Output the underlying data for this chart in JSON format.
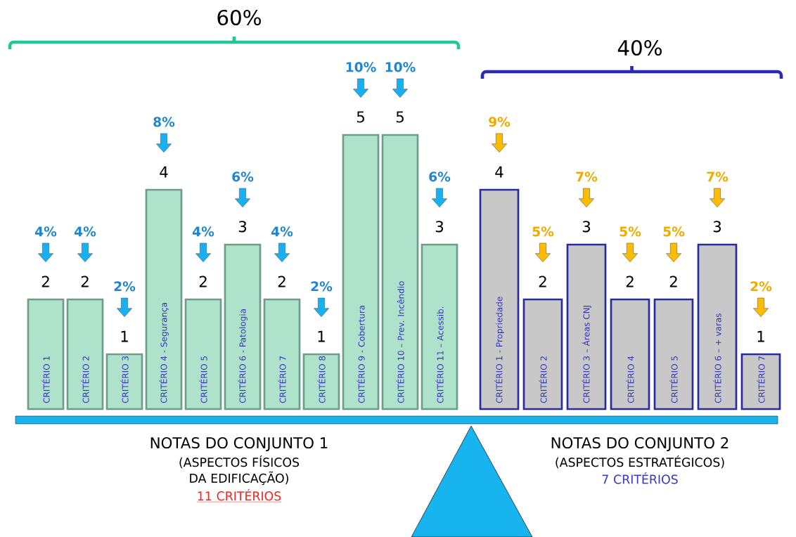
{
  "chart_data": [
    {
      "type": "bar",
      "title": "60%",
      "xlabel": "NOTAS DO CONJUNTO 1",
      "color": "#aee2ca",
      "data_labels": true,
      "categories": [
        "CRITÉRIO 1",
        "CRITÉRIO 2",
        "CRITÉRIO 3",
        "CRITÉRIO 4 - Segurança",
        "CRITÉRIO 5",
        "CRITÉRIO 6 - Patologia",
        "CRITÉRIO 7",
        "CRITÉRIO 8",
        "CRITÉRIO 9 - Cobertura",
        "CRITÉRIO 10 – Prev. Incêndio",
        "CRITÉRIO 11 – Acessib."
      ],
      "values": [
        2,
        2,
        1,
        4,
        2,
        3,
        2,
        1,
        5,
        5,
        3
      ],
      "annotations": [
        "(ASPECTOS FÍSICOS DA EDIFICAÇÃO)",
        "11 CRITÉRIOS",
        "4%",
        "4%",
        "2%",
        "8%",
        "4%",
        "6%",
        "4%",
        "2%",
        "10%",
        "10%",
        "6%"
      ]
    },
    {
      "type": "bar",
      "title": "40%",
      "xlabel": "NOTAS DO CONJUNTO 2",
      "color": "#c8c8c8",
      "data_labels": true,
      "categories": [
        "CRITÉRIO 1 - Propriedade",
        "CRITÉRIO 2",
        "CRITÉRIO 3 – Áreas CNJ",
        "CRITÉRIO 4",
        "CRITÉRIO 5",
        "CRITÉRIO 6 – + varas",
        "CRITÉRIO 7"
      ],
      "values": [
        4,
        2,
        3,
        2,
        2,
        3,
        1
      ],
      "annotations": [
        "(ASPECTOS ESTRATÉGICOS)",
        "7 CRITÉRIOS",
        "9%",
        "5%",
        "7%",
        "5%",
        "5%",
        "7%",
        "2%"
      ]
    }
  ]
}
